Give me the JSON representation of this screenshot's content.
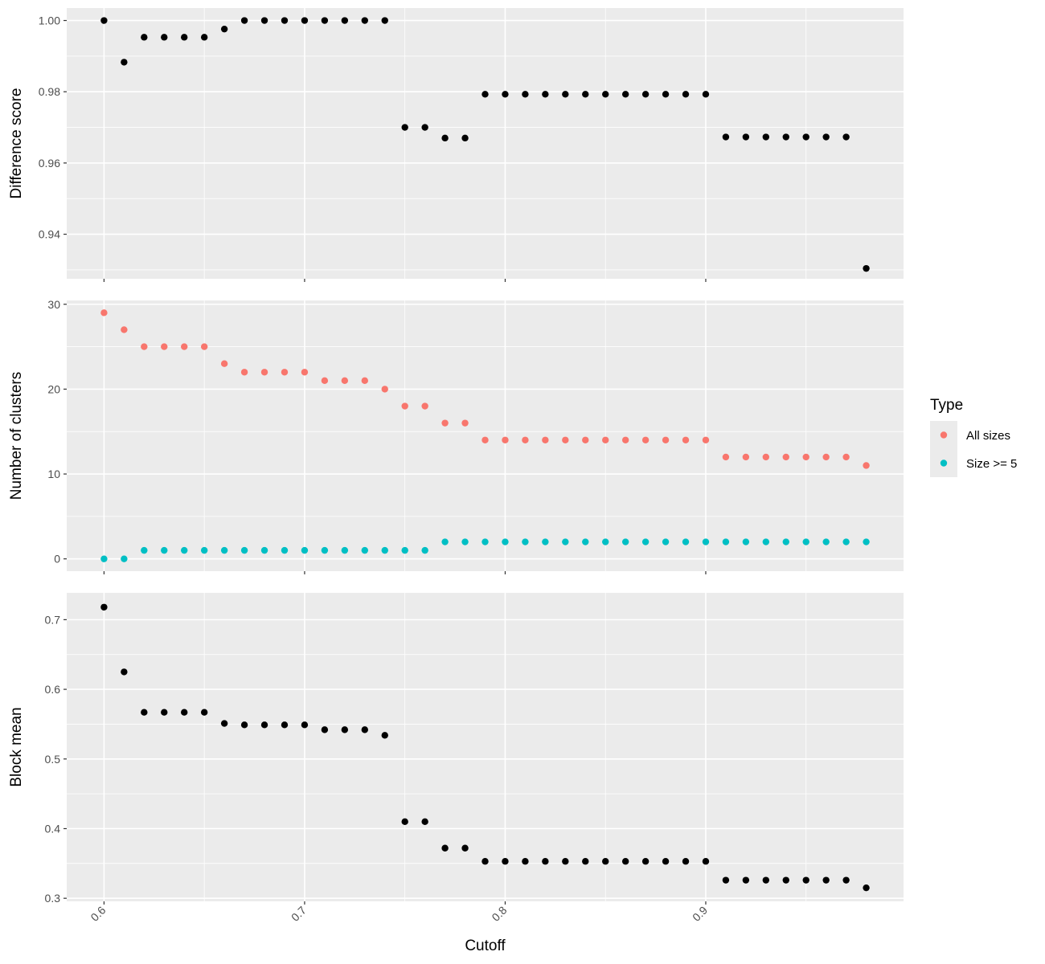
{
  "chart_data": [
    {
      "type": "scatter",
      "ylabel": "Difference score",
      "xlabel": "",
      "ylim": [
        0.9275,
        1.0035
      ],
      "yticks": [
        0.94,
        0.96,
        0.98,
        1.0
      ],
      "ytick_labels": [
        "0.94",
        "0.96",
        "0.98",
        "1.00"
      ],
      "xlim": [
        0.5814,
        0.9986
      ],
      "series": [
        {
          "color": "#000000",
          "x": [
            0.6,
            0.61,
            0.62,
            0.63,
            0.64,
            0.65,
            0.66,
            0.67,
            0.68,
            0.69,
            0.7,
            0.71,
            0.72,
            0.73,
            0.74,
            0.75,
            0.76,
            0.77,
            0.78,
            0.79,
            0.8,
            0.81,
            0.82,
            0.83,
            0.84,
            0.85,
            0.86,
            0.87,
            0.88,
            0.89,
            0.9,
            0.91,
            0.92,
            0.93,
            0.94,
            0.95,
            0.96,
            0.97,
            0.98
          ],
          "y": [
            1.0,
            0.9883,
            0.9953,
            0.9953,
            0.9953,
            0.9953,
            0.9976,
            1.0,
            1.0,
            1.0,
            1.0,
            1.0,
            1.0,
            1.0,
            1.0,
            0.97,
            0.97,
            0.967,
            0.967,
            0.9793,
            0.9793,
            0.9793,
            0.9793,
            0.9793,
            0.9793,
            0.9793,
            0.9793,
            0.9793,
            0.9793,
            0.9793,
            0.9793,
            0.9673,
            0.9673,
            0.9673,
            0.9673,
            0.9673,
            0.9673,
            0.9673,
            0.9304
          ]
        }
      ]
    },
    {
      "type": "scatter",
      "ylabel": "Number of clusters",
      "xlabel": "",
      "ylim": [
        -1.45,
        30.45
      ],
      "yticks": [
        0,
        10,
        20,
        30
      ],
      "ytick_labels": [
        "0",
        "10",
        "20",
        "30"
      ],
      "xlim": [
        0.5814,
        0.9986
      ],
      "legend": {
        "title": "Type",
        "position": "right"
      },
      "series": [
        {
          "name": "All sizes",
          "color": "#F8766D",
          "x": [
            0.6,
            0.61,
            0.62,
            0.63,
            0.64,
            0.65,
            0.66,
            0.67,
            0.68,
            0.69,
            0.7,
            0.71,
            0.72,
            0.73,
            0.74,
            0.75,
            0.76,
            0.77,
            0.78,
            0.79,
            0.8,
            0.81,
            0.82,
            0.83,
            0.84,
            0.85,
            0.86,
            0.87,
            0.88,
            0.89,
            0.9,
            0.91,
            0.92,
            0.93,
            0.94,
            0.95,
            0.96,
            0.97,
            0.98
          ],
          "y": [
            29,
            27,
            25,
            25,
            25,
            25,
            23,
            22,
            22,
            22,
            22,
            21,
            21,
            21,
            20,
            18,
            18,
            16,
            16,
            14,
            14,
            14,
            14,
            14,
            14,
            14,
            14,
            14,
            14,
            14,
            14,
            12,
            12,
            12,
            12,
            12,
            12,
            12,
            11
          ]
        },
        {
          "name": "Size >= 5",
          "color": "#00BFC4",
          "x": [
            0.6,
            0.61,
            0.62,
            0.63,
            0.64,
            0.65,
            0.66,
            0.67,
            0.68,
            0.69,
            0.7,
            0.71,
            0.72,
            0.73,
            0.74,
            0.75,
            0.76,
            0.77,
            0.78,
            0.79,
            0.8,
            0.81,
            0.82,
            0.83,
            0.84,
            0.85,
            0.86,
            0.87,
            0.88,
            0.89,
            0.9,
            0.91,
            0.92,
            0.93,
            0.94,
            0.95,
            0.96,
            0.97,
            0.98
          ],
          "y": [
            0,
            0,
            1,
            1,
            1,
            1,
            1,
            1,
            1,
            1,
            1,
            1,
            1,
            1,
            1,
            1,
            1,
            2,
            2,
            2,
            2,
            2,
            2,
            2,
            2,
            2,
            2,
            2,
            2,
            2,
            2,
            2,
            2,
            2,
            2,
            2,
            2,
            2,
            2
          ]
        }
      ]
    },
    {
      "type": "scatter",
      "ylabel": "Block mean",
      "xlabel": "Cutoff",
      "ylim": [
        0.2956,
        0.7385
      ],
      "yticks": [
        0.3,
        0.4,
        0.5,
        0.6,
        0.7
      ],
      "ytick_labels": [
        "0.3",
        "0.4",
        "0.5",
        "0.6",
        "0.7"
      ],
      "xlim": [
        0.5814,
        0.9986
      ],
      "xticks": [
        0.6,
        0.7,
        0.8,
        0.9
      ],
      "xtick_labels": [
        "0.6",
        "0.7",
        "0.8",
        "0.9"
      ],
      "series": [
        {
          "color": "#000000",
          "x": [
            0.6,
            0.61,
            0.62,
            0.63,
            0.64,
            0.65,
            0.66,
            0.67,
            0.68,
            0.69,
            0.7,
            0.71,
            0.72,
            0.73,
            0.74,
            0.75,
            0.76,
            0.77,
            0.78,
            0.79,
            0.8,
            0.81,
            0.82,
            0.83,
            0.84,
            0.85,
            0.86,
            0.87,
            0.88,
            0.89,
            0.9,
            0.91,
            0.92,
            0.93,
            0.94,
            0.95,
            0.96,
            0.97,
            0.98
          ],
          "y": [
            0.718,
            0.625,
            0.567,
            0.567,
            0.567,
            0.567,
            0.551,
            0.549,
            0.549,
            0.549,
            0.549,
            0.542,
            0.542,
            0.542,
            0.534,
            0.41,
            0.41,
            0.372,
            0.372,
            0.353,
            0.353,
            0.353,
            0.353,
            0.353,
            0.353,
            0.353,
            0.353,
            0.353,
            0.353,
            0.353,
            0.353,
            0.326,
            0.326,
            0.326,
            0.326,
            0.326,
            0.326,
            0.326,
            0.315
          ]
        }
      ]
    }
  ]
}
